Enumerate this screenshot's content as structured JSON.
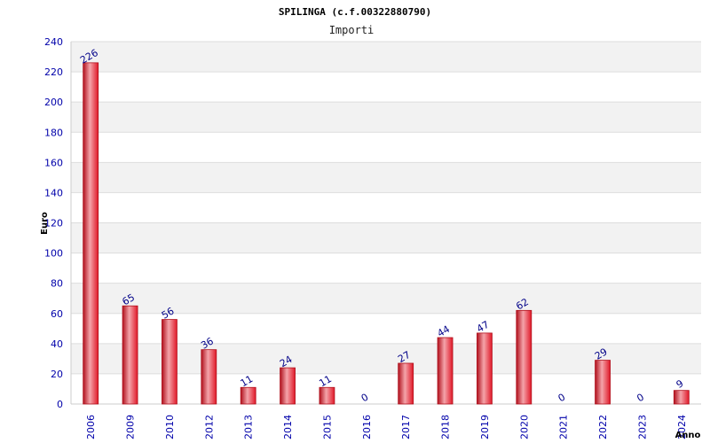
{
  "chart_data": {
    "type": "bar",
    "title": "SPILINGA (c.f.00322880790)",
    "subtitle": "Importi",
    "xlabel": "Anno",
    "ylabel": "Euro",
    "ylim": [
      0,
      240
    ],
    "yticks": [
      0,
      20,
      40,
      60,
      80,
      100,
      120,
      140,
      160,
      180,
      200,
      220,
      240
    ],
    "grid": true,
    "categories": [
      "2006",
      "2009",
      "2010",
      "2012",
      "2013",
      "2014",
      "2015",
      "2016",
      "2017",
      "2018",
      "2019",
      "2020",
      "2021",
      "2022",
      "2023",
      "2024"
    ],
    "series": [
      {
        "values": [
          226,
          65,
          56,
          36,
          11,
          24,
          11,
          0,
          27,
          44,
          47,
          62,
          0,
          29,
          0,
          9
        ],
        "labels": [
          "226",
          "65",
          "56",
          "36",
          "11",
          "24",
          "11",
          "0",
          "27",
          "44",
          "47",
          "62",
          "0",
          "29",
          "0",
          "9"
        ]
      }
    ],
    "colors": {
      "bar_edge": "#b0101c",
      "bar_center": "#f4a4aa",
      "bar_side": "#e01828",
      "band": "#f2f2f2",
      "tick_text": "#0000aa",
      "label_text": "#000088"
    }
  }
}
